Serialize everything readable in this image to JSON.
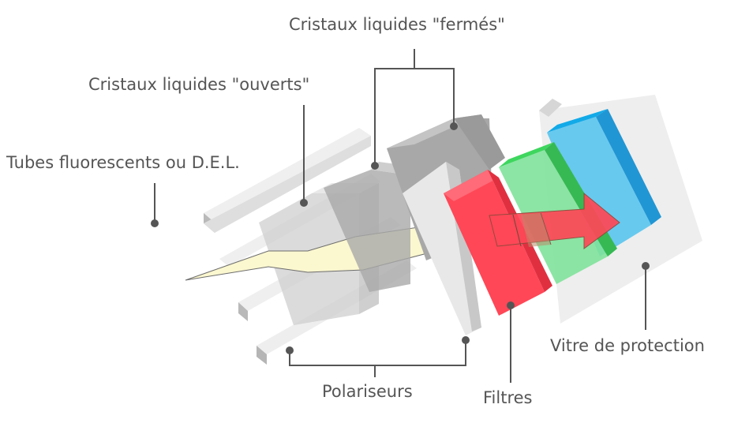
{
  "labels": {
    "closed_crystals": "Cristaux liquides \"fermés\"",
    "open_crystals": "Cristaux liquides \"ouverts\"",
    "backlight": "Tubes fluorescents ou D.E.L.",
    "protective_glass": "Vitre de protection",
    "polarizers": "Polariseurs",
    "filters": "Filtres"
  },
  "colors": {
    "label_text": "#555555",
    "leader_line": "#555555",
    "light_beam": "#fbf7cf",
    "filter_red": "#ff4757",
    "filter_green": "#4cd964",
    "filter_blue": "#1eb4f0",
    "glass": "#e6e6e6",
    "crystal_gray": "#a0a0a0"
  }
}
